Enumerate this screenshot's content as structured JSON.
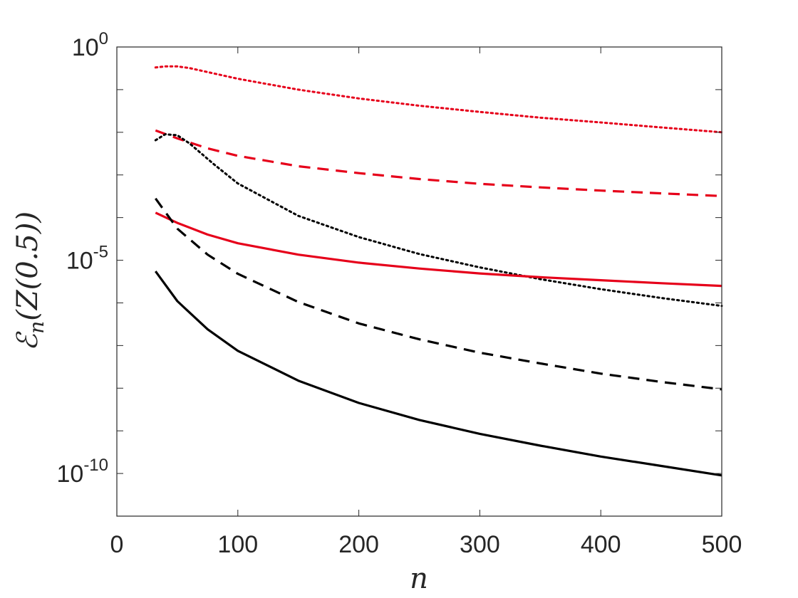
{
  "chart_data": {
    "type": "line",
    "title": "",
    "xlabel": "n",
    "ylabel": "ℰn(Z(0.5))",
    "ylabel_parts": {
      "script": "ℰ",
      "sub": "n",
      "rest": "(Z(0.5))"
    },
    "xlim": [
      0,
      500
    ],
    "ylim": [
      1e-11,
      1
    ],
    "yscale": "log",
    "grid": false,
    "legend": "none",
    "x_ticks": [
      "0",
      "100",
      "200",
      "300",
      "400",
      "500"
    ],
    "y_ticks": [
      {
        "base": "10",
        "exp": "0",
        "value": 1
      },
      {
        "base": "10",
        "exp": "-5",
        "value": 1e-05
      },
      {
        "base": "10",
        "exp": "-10",
        "value": 1e-10
      }
    ],
    "series": [
      {
        "color": "#e6001a",
        "style": "dotted",
        "x": [
          32,
          40,
          50,
          60,
          80,
          100,
          150,
          200,
          250,
          300,
          350,
          400,
          450,
          500
        ],
        "y": [
          0.33,
          0.35,
          0.35,
          0.32,
          0.24,
          0.18,
          0.1,
          0.062,
          0.042,
          0.03,
          0.022,
          0.017,
          0.013,
          0.01
        ]
      },
      {
        "color": "#e6001a",
        "style": "dashed",
        "x": [
          32,
          50,
          75,
          100,
          150,
          200,
          250,
          300,
          350,
          400,
          450,
          500
        ],
        "y": [
          0.011,
          0.0072,
          0.0042,
          0.0028,
          0.0016,
          0.0011,
          0.0008,
          0.00062,
          0.00051,
          0.00043,
          0.00037,
          0.00032
        ]
      },
      {
        "color": "#000000",
        "style": "dotted",
        "x": [
          32,
          40,
          50,
          60,
          80,
          100,
          150,
          200,
          250,
          300,
          350,
          400,
          450,
          500
        ],
        "y": [
          0.0065,
          0.009,
          0.0085,
          0.0055,
          0.0018,
          0.00063,
          0.00011,
          3.5e-05,
          1.4e-05,
          6.8e-06,
          3.6e-06,
          2.1e-06,
          1.3e-06,
          8.5e-07
        ]
      },
      {
        "color": "#e6001a",
        "style": "solid",
        "x": [
          32,
          50,
          75,
          100,
          150,
          200,
          250,
          300,
          350,
          400,
          450,
          500
        ],
        "y": [
          0.00013,
          7.5e-05,
          4e-05,
          2.5e-05,
          1.35e-05,
          8.8e-06,
          6.4e-06,
          4.9e-06,
          4e-06,
          3.4e-06,
          2.9e-06,
          2.5e-06
        ]
      },
      {
        "color": "#000000",
        "style": "dashed",
        "x": [
          32,
          50,
          75,
          100,
          150,
          200,
          250,
          300,
          350,
          400,
          450,
          500
        ],
        "y": [
          0.00028,
          5.5e-05,
          1.35e-05,
          4.8e-06,
          1.05e-06,
          3.3e-07,
          1.4e-07,
          6.8e-08,
          3.8e-08,
          2.2e-08,
          1.4e-08,
          9.4e-09
        ]
      },
      {
        "color": "#000000",
        "style": "solid",
        "x": [
          32,
          50,
          75,
          100,
          150,
          200,
          250,
          300,
          350,
          400,
          450,
          500
        ],
        "y": [
          5.5e-06,
          1.1e-06,
          2.4e-07,
          7.5e-08,
          1.5e-08,
          4.5e-09,
          1.8e-09,
          8.5e-10,
          4.5e-10,
          2.5e-10,
          1.5e-10,
          9e-11
        ]
      }
    ]
  }
}
